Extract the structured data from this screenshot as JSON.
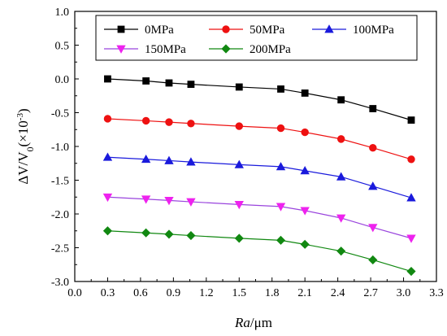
{
  "chart_data": {
    "type": "line",
    "title": "",
    "xlabel": "R_a/μm",
    "xlabel_italic": "Ra",
    "xlabel_rest": "/μm",
    "ylabel": "ΔV/V0(×10^-3)",
    "ylabel_parts": {
      "main": "ΔV/V",
      "sub": "0",
      "paren_open": "(×10",
      "sup": "-3",
      "paren_close": ")"
    },
    "xlim": [
      0.0,
      3.3
    ],
    "ylim": [
      -3.0,
      1.0
    ],
    "xticks": [
      "0.0",
      "0.3",
      "0.6",
      "0.9",
      "1.2",
      "1.5",
      "1.8",
      "2.1",
      "2.4",
      "2.7",
      "3.0",
      "3.3"
    ],
    "yticks": [
      "1.0",
      "0.5",
      "0.0",
      "-0.5",
      "-1.0",
      "-1.5",
      "-2.0",
      "-2.5",
      "-3.0"
    ],
    "grid": false,
    "legend_position": "top",
    "x": [
      0.3,
      0.65,
      0.86,
      1.06,
      1.5,
      1.88,
      2.1,
      2.43,
      2.72,
      3.07
    ],
    "series": [
      {
        "name": "0MPa",
        "color": "#000000",
        "marker": "square",
        "values": [
          0.0,
          -0.03,
          -0.06,
          -0.08,
          -0.12,
          -0.15,
          -0.21,
          -0.31,
          -0.44,
          -0.61
        ]
      },
      {
        "name": "50MPa",
        "color": "#ee1111",
        "marker": "circle",
        "values": [
          -0.59,
          -0.62,
          -0.64,
          -0.66,
          -0.7,
          -0.73,
          -0.79,
          -0.89,
          -1.02,
          -1.19
        ]
      },
      {
        "name": "100MPa",
        "color": "#1a1adc",
        "marker": "triangle-up",
        "values": [
          -1.16,
          -1.19,
          -1.21,
          -1.23,
          -1.27,
          -1.3,
          -1.36,
          -1.45,
          -1.59,
          -1.76
        ]
      },
      {
        "name": "150MPa",
        "color": "#ee22ee",
        "line_color": "#9944dd",
        "marker": "triangle-down",
        "values": [
          -1.75,
          -1.78,
          -1.8,
          -1.82,
          -1.86,
          -1.89,
          -1.95,
          -2.06,
          -2.2,
          -2.36
        ]
      },
      {
        "name": "200MPa",
        "color": "#118811",
        "marker": "diamond",
        "values": [
          -2.25,
          -2.28,
          -2.3,
          -2.32,
          -2.36,
          -2.39,
          -2.45,
          -2.55,
          -2.68,
          -2.85
        ]
      }
    ]
  }
}
